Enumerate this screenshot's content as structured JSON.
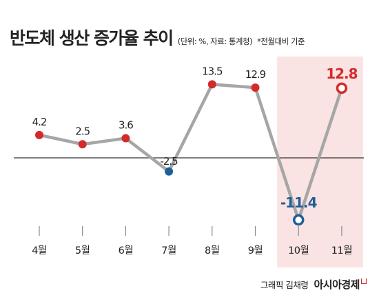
{
  "title": "반도체 생산 증가율 추이",
  "unit_note": "(단위: %, 자료: 통계청)",
  "basis_note": "*전월대비 기준",
  "credit": {
    "author": "그래픽 김채령",
    "brand": "아시아경제"
  },
  "colors": {
    "positive": "#d32a2a",
    "negative": "#1f5f99",
    "line": "#a6a6a6",
    "highlight_band": "#fae3e3",
    "zero_line": "#333333",
    "label": "#222222"
  },
  "chart_data": {
    "type": "line",
    "categories": [
      "4월",
      "5월",
      "6월",
      "7월",
      "8월",
      "9월",
      "10월",
      "11월"
    ],
    "series": [
      {
        "values": [
          4.2,
          2.5,
          3.6,
          -2.5,
          13.5,
          12.9,
          -11.4,
          12.8
        ]
      }
    ],
    "data_labels": [
      "4.2",
      "2.5",
      "3.6",
      "-2.5",
      "13.5",
      "12.9",
      "-11.4",
      "12.8"
    ],
    "highlighted_categories": [
      "10월",
      "11월"
    ],
    "emphasized_points": [
      "10월",
      "11월"
    ],
    "zero_line": true,
    "grid": false,
    "legend": false
  }
}
